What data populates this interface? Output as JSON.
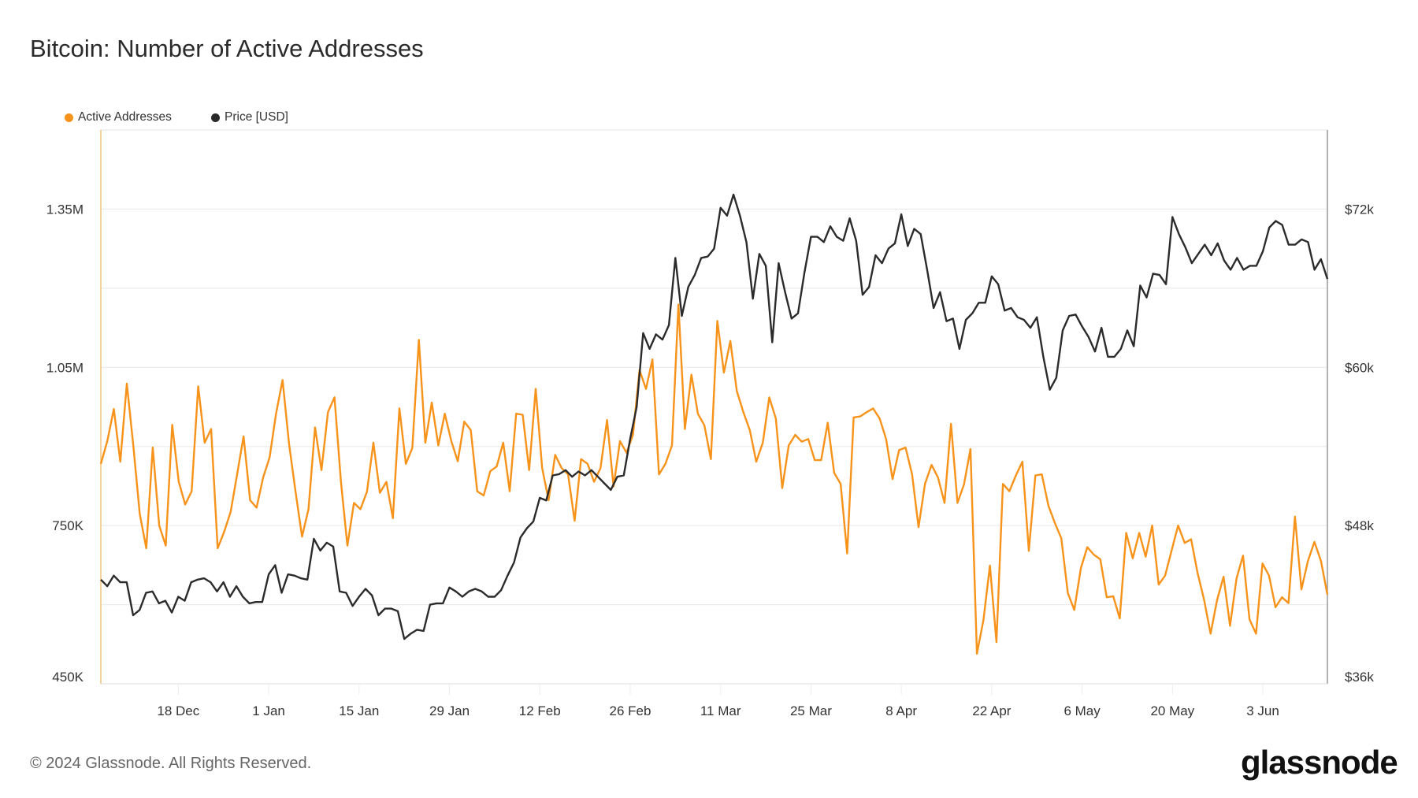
{
  "chart_data": {
    "type": "line",
    "title": "Bitcoin: Number of Active Addresses",
    "x_start_date": "6 Dec 2023",
    "x_unit": "day",
    "x_domain_days": [
      0,
      190
    ],
    "x_ticks": [
      {
        "day": 12,
        "label": "18 Dec"
      },
      {
        "day": 26,
        "label": "1 Jan"
      },
      {
        "day": 40,
        "label": "15 Jan"
      },
      {
        "day": 54,
        "label": "29 Jan"
      },
      {
        "day": 68,
        "label": "12 Feb"
      },
      {
        "day": 82,
        "label": "26 Feb"
      },
      {
        "day": 96,
        "label": "11 Mar"
      },
      {
        "day": 110,
        "label": "25 Mar"
      },
      {
        "day": 124,
        "label": "8 Apr"
      },
      {
        "day": 138,
        "label": "22 Apr"
      },
      {
        "day": 152,
        "label": "6 May"
      },
      {
        "day": 166,
        "label": "20 May"
      },
      {
        "day": 180,
        "label": "3 Jun"
      }
    ],
    "y_left": {
      "unit": "K",
      "range": [
        450,
        1500
      ],
      "gridlines": [
        600,
        750,
        900,
        1050,
        1200,
        1350
      ],
      "ticks": [
        {
          "value": 450,
          "label": "450K"
        },
        {
          "value": 750,
          "label": "750K"
        },
        {
          "value": 1050,
          "label": "1.05M"
        },
        {
          "value": 1350,
          "label": "1.35M"
        }
      ]
    },
    "y_right": {
      "unit": "USD k",
      "range": [
        36,
        78
      ],
      "ticks": [
        {
          "value": 36,
          "label": "$36k"
        },
        {
          "value": 48,
          "label": "$48k"
        },
        {
          "value": 60,
          "label": "$60k"
        },
        {
          "value": 72,
          "label": "$72k"
        }
      ]
    },
    "legend": [
      {
        "name": "Active Addresses",
        "color": "#f7931a"
      },
      {
        "name": "Price [USD]",
        "color": "#2b2b2b"
      }
    ],
    "legend_position": "top-left",
    "series": [
      {
        "name": "Active Addresses",
        "axis": "left",
        "color": "#f7931a",
        "values": [
          867,
          910,
          971,
          871,
          1019,
          902,
          772,
          707,
          898,
          750,
          712,
          941,
          833,
          790,
          815,
          1014,
          907,
          933,
          707,
          738,
          776,
          847,
          919,
          798,
          784,
          841,
          879,
          962,
          1026,
          905,
          815,
          729,
          781,
          936,
          855,
          965,
          993,
          833,
          712,
          793,
          781,
          814,
          907,
          812,
          833,
          764,
          972,
          867,
          897,
          1102,
          907,
          983,
          902,
          962,
          910,
          872,
          947,
          931,
          815,
          807,
          853,
          862,
          907,
          815,
          962,
          960,
          855,
          1009,
          859,
          798,
          884,
          859,
          847,
          759,
          876,
          867,
          833,
          859,
          950,
          824,
          910,
          888,
          922,
          1045,
          1009,
          1065,
          847,
          867,
          902,
          1169,
          933,
          1036,
          962,
          940,
          876,
          1138,
          1040,
          1100,
          1005,
          965,
          931,
          871,
          907,
          993,
          953,
          821,
          902,
          922,
          909,
          914,
          874,
          874,
          945,
          850,
          829,
          697,
          955,
          957,
          965,
          972,
          953,
          914,
          838,
          893,
          898,
          847,
          747,
          829,
          865,
          841,
          793,
          943,
          793,
          828,
          895,
          507,
          571,
          674,
          529,
          829,
          815,
          845,
          871,
          702,
          845,
          847,
          788,
          755,
          726,
          622,
          590,
          669,
          709,
          695,
          686,
          614,
          616,
          574,
          736,
          688,
          736,
          691,
          750,
          638,
          655,
          703,
          750,
          717,
          724,
          660,
          609,
          545,
          609,
          653,
          560,
          650,
          693,
          572,
          545,
          678,
          655,
          595,
          614,
          603,
          767,
          629,
          683,
          719,
          683,
          619
        ]
      },
      {
        "name": "Price [USD]",
        "axis": "right",
        "color": "#2b2b2b",
        "values": [
          43.9,
          43.4,
          44.2,
          43.7,
          43.7,
          41.2,
          41.6,
          42.9,
          43.0,
          42.1,
          42.3,
          41.4,
          42.6,
          42.3,
          43.7,
          43.9,
          44.0,
          43.7,
          43.0,
          43.7,
          42.6,
          43.4,
          42.6,
          42.1,
          42.2,
          42.2,
          44.3,
          45.0,
          42.9,
          44.3,
          44.2,
          44.0,
          43.9,
          47.0,
          46.1,
          46.7,
          46.4,
          43.0,
          42.9,
          41.9,
          42.6,
          43.2,
          42.7,
          41.2,
          41.7,
          41.7,
          41.5,
          39.4,
          39.8,
          40.1,
          40.0,
          42.0,
          42.1,
          42.1,
          43.3,
          43.0,
          42.6,
          43.0,
          43.2,
          43.0,
          42.6,
          42.6,
          43.1,
          44.2,
          45.2,
          47.1,
          47.8,
          48.3,
          50.1,
          49.9,
          51.8,
          51.9,
          52.2,
          51.7,
          52.1,
          51.8,
          52.2,
          51.7,
          51.2,
          50.7,
          51.7,
          51.8,
          54.6,
          57.0,
          62.6,
          61.4,
          62.5,
          62.1,
          63.2,
          68.3,
          63.9,
          66.1,
          67.0,
          68.3,
          68.4,
          69.0,
          72.1,
          71.5,
          73.1,
          71.5,
          69.5,
          65.2,
          68.6,
          67.7,
          61.9,
          67.9,
          65.7,
          63.7,
          64.1,
          67.2,
          69.9,
          69.9,
          69.5,
          70.7,
          69.9,
          69.6,
          71.3,
          69.6,
          65.5,
          66.1,
          68.5,
          67.9,
          69.0,
          69.4,
          71.6,
          69.2,
          70.5,
          70.1,
          67.4,
          64.5,
          65.7,
          63.5,
          63.7,
          61.4,
          63.6,
          64.1,
          64.9,
          64.9,
          66.9,
          66.3,
          64.3,
          64.5,
          63.8,
          63.6,
          63.0,
          63.8,
          60.8,
          58.3,
          59.2,
          62.8,
          63.9,
          64.0,
          63.1,
          62.3,
          61.2,
          63.0,
          60.8,
          60.8,
          61.4,
          62.8,
          61.6,
          66.2,
          65.3,
          67.1,
          67.0,
          66.3,
          71.4,
          70.1,
          69.1,
          67.9,
          68.6,
          69.3,
          68.5,
          69.4,
          68.1,
          67.4,
          68.3,
          67.4,
          67.7,
          67.7,
          68.8,
          70.6,
          71.1,
          70.8,
          69.3,
          69.3,
          69.7,
          69.5,
          67.4,
          68.2,
          66.7
        ]
      }
    ]
  },
  "footer": {
    "copyright": "© 2024 Glassnode. All Rights Reserved.",
    "logo": "glassnode"
  }
}
